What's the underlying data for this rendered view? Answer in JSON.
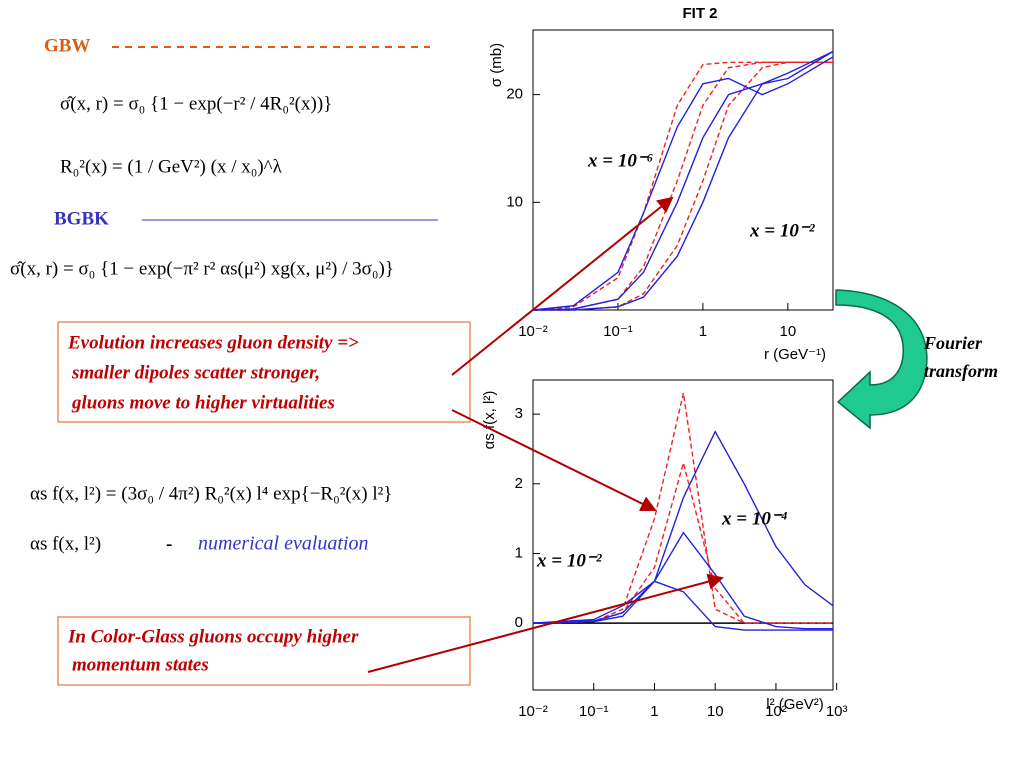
{
  "slide": {
    "gbw_label": "GBW",
    "gbw_formula_1": "σ̂(x, r) = σ₀ {1 − exp(−r² / 4R₀²(x))}",
    "gbw_formula_2": "R₀²(x) = (1 / GeV²) (x / x₀)^λ",
    "bgbk_label": "BGBK",
    "bgbk_formula": "σ̂(x, r) = σ₀ {1 − exp(−π² r² αs(μ²) xg(x, μ²) / 3σ₀)}",
    "box1": [
      "Evolution increases gluon density =>",
      "smaller dipoles scatter stronger,",
      "gluons move to higher virtualities"
    ],
    "formula_3": "αs f(x, l²) = (3σ₀ / 4π²) R₀²(x) l⁴ exp{−R₀²(x) l²}",
    "formula_4": "αs f(x, l²)",
    "dash": "-",
    "numerical": "numerical evaluation",
    "box2": [
      "In Color-Glass gluons occupy higher",
      "momentum states"
    ],
    "fourier": [
      "Fourier",
      "transform"
    ]
  },
  "chart_data": [
    {
      "type": "line",
      "title": "FIT 2",
      "xlabel": "r (GeV⁻¹)",
      "ylabel": "σ (mb)",
      "xscale": "log",
      "x": [
        0.01,
        0.03,
        0.1,
        0.2,
        0.5,
        1,
        2,
        5,
        10,
        34
      ],
      "xlim": [
        0.01,
        34
      ],
      "ylim": [
        0,
        26
      ],
      "xticks": [
        {
          "value": 0.01,
          "label": "10⁻²"
        },
        {
          "value": 0.1,
          "label": "10⁻¹"
        },
        1,
        10
      ],
      "yticks": [
        10,
        20
      ],
      "annotations": [
        "x = 10⁻⁶",
        "x = 10⁻²"
      ],
      "series": [
        {
          "color": "#ee2222",
          "style": "dashed",
          "values": [
            0,
            0.3,
            3,
            9,
            19,
            22.8,
            23,
            23,
            23,
            23
          ]
        },
        {
          "color": "#ee2222",
          "style": "dashed",
          "values": [
            0,
            0.1,
            1,
            4,
            12,
            19,
            22.5,
            23,
            23,
            23
          ]
        },
        {
          "color": "#ee2222",
          "style": "dashed",
          "values": [
            0,
            0,
            0.3,
            1.5,
            6,
            12,
            19,
            22.5,
            23,
            23
          ]
        },
        {
          "color": "#2222dd",
          "style": "solid",
          "values": [
            0,
            0.4,
            3.5,
            9,
            17,
            21,
            21.5,
            20,
            21,
            23.5
          ]
        },
        {
          "color": "#2222dd",
          "style": "solid",
          "values": [
            0,
            0.1,
            1,
            3.5,
            10,
            16,
            20,
            21,
            21.5,
            24
          ]
        },
        {
          "color": "#2222dd",
          "style": "solid",
          "values": [
            0,
            0,
            0.3,
            1.2,
            5,
            10,
            16,
            21,
            22,
            24
          ]
        }
      ]
    },
    {
      "type": "line",
      "xlabel": "l² (GeV²)",
      "ylabel": "αs f(x, l²)",
      "xscale": "log",
      "x": [
        0.01,
        0.1,
        0.3,
        1,
        3,
        10,
        30,
        100,
        300,
        870
      ],
      "xlim": [
        0.01,
        870
      ],
      "ylim": [
        -0.96,
        3.49
      ],
      "xticks": [
        {
          "value": 0.01,
          "label": "10⁻²"
        },
        {
          "value": 0.1,
          "label": "10⁻¹"
        },
        1,
        10,
        {
          "value": 100,
          "label": "10²"
        },
        {
          "value": 1000,
          "label": "10³"
        }
      ],
      "yticks": [
        0,
        1,
        2,
        3
      ],
      "annotations": [
        "x = 10⁻⁴",
        "x = 10⁻²"
      ],
      "series": [
        {
          "color": "#ee2222",
          "style": "dashed",
          "values": [
            0,
            0.02,
            0.2,
            1.5,
            3.3,
            0.2,
            0,
            0,
            0,
            0
          ]
        },
        {
          "color": "#ee2222",
          "style": "dashed",
          "values": [
            0,
            0.02,
            0.15,
            0.8,
            2.3,
            0.5,
            0,
            0,
            0,
            0
          ]
        },
        {
          "color": "#2222dd",
          "style": "solid",
          "values": [
            0,
            0.05,
            0.25,
            0.6,
            0.45,
            -0.05,
            -0.1,
            -0.1,
            -0.1,
            -0.1
          ]
        },
        {
          "color": "#2222dd",
          "style": "solid",
          "values": [
            0,
            0.03,
            0.15,
            0.6,
            1.3,
            0.7,
            0.1,
            -0.05,
            -0.08,
            -0.08
          ]
        },
        {
          "color": "#2222dd",
          "style": "solid",
          "values": [
            0,
            0.02,
            0.1,
            0.6,
            1.8,
            2.75,
            2.0,
            1.1,
            0.55,
            0.25
          ]
        }
      ]
    }
  ]
}
